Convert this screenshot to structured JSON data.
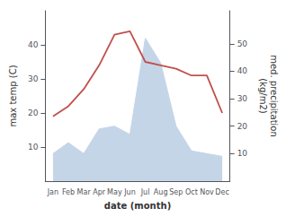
{
  "chart_data": {
    "type": "line",
    "xlabel": "date (month)",
    "ylabel": "max temp (C)",
    "y2label": "med. precipitation\n(kg/m2)",
    "categories": [
      "Jan",
      "Feb",
      "Mar",
      "Apr",
      "May",
      "Jun",
      "Jul",
      "Aug",
      "Sep",
      "Oct",
      "Nov",
      "Dec"
    ],
    "series": [
      {
        "type": "area",
        "color": "#C5D5E8",
        "axis": "y2",
        "values": [
          10,
          14,
          10,
          19,
          20,
          17,
          52,
          43,
          20,
          11,
          10,
          9
        ]
      },
      {
        "type": "line",
        "color": "#c0504d",
        "values": [
          19,
          22,
          27,
          34,
          43,
          44,
          35,
          34,
          33,
          31,
          31,
          20
        ]
      }
    ],
    "ylim": [
      0,
      50
    ],
    "yticks": [
      10,
      20,
      30,
      40
    ],
    "y2lim": [
      0,
      62
    ],
    "y2ticks": [
      10,
      20,
      30,
      40,
      50
    ],
    "grid": false
  }
}
